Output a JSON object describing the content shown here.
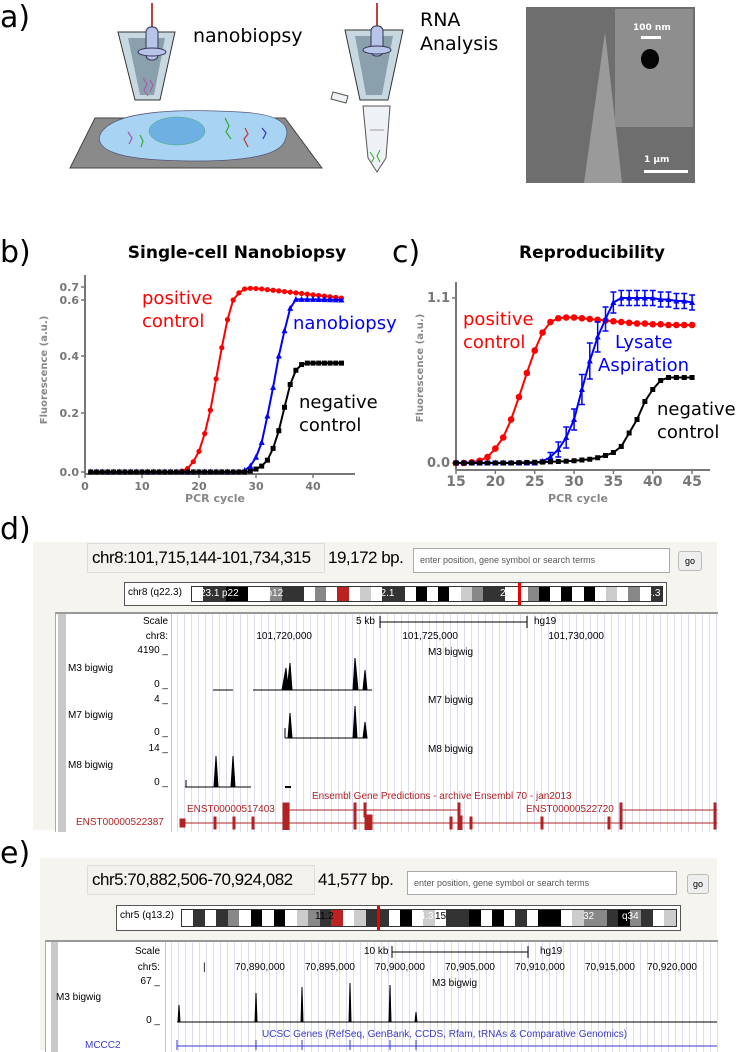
{
  "panel_labels": {
    "a": "a)",
    "b": "b)",
    "c": "c)",
    "d": "d)",
    "e": "e)"
  },
  "panel_a": {
    "step1": "nanobiopsy",
    "step2_line1": "RNA",
    "step2_line2": "Analysis",
    "sem_inset_scale": "100 nm",
    "sem_scale": "1 µm"
  },
  "chart_data": [
    {
      "type": "line",
      "title": "Single-cell Nanobiopsy",
      "xlabel": "PCR cycle",
      "ylabel": "Fluorescence  (a.u.)",
      "xlim": [
        0,
        45
      ],
      "ylim": [
        0,
        0.7
      ],
      "xticks": [
        0,
        10,
        20,
        30,
        40
      ],
      "yticks": [
        "0.0",
        "0.2",
        "0.4",
        "0.6",
        "0.7"
      ],
      "grid": false,
      "x_start": 1,
      "series": [
        {
          "name": "positive control",
          "label_lines": [
            "positive",
            "control"
          ],
          "color": "#ff0000",
          "marker": "circle",
          "values": [
            0,
            0,
            0,
            0,
            0,
            0,
            0,
            0,
            0,
            0,
            0,
            0,
            0,
            0,
            0,
            0,
            0.003,
            0.012,
            0.035,
            0.07,
            0.13,
            0.21,
            0.32,
            0.43,
            0.53,
            0.6,
            0.655,
            0.685,
            0.69,
            0.688,
            0.685,
            0.68,
            0.675,
            0.67,
            0.665,
            0.66,
            0.655,
            0.65,
            0.645,
            0.64,
            0.635,
            0.63,
            0.625,
            0.62,
            0.615
          ]
        },
        {
          "name": "nanobiopsy",
          "label_lines": [
            "nanobiopsy"
          ],
          "color": "#0000ff",
          "marker": "triangle",
          "values": [
            0,
            0,
            0,
            0,
            0,
            0,
            0,
            0,
            0,
            0,
            0,
            0,
            0,
            0,
            0,
            0,
            0,
            0,
            0,
            0,
            0,
            0,
            0,
            0,
            0,
            0,
            0,
            0.005,
            0.02,
            0.05,
            0.1,
            0.19,
            0.29,
            0.4,
            0.49,
            0.57,
            0.605,
            0.605,
            0.605,
            0.605,
            0.604,
            0.603,
            0.602,
            0.601,
            0.6
          ]
        },
        {
          "name": "negative control",
          "label_lines": [
            "negative",
            "control"
          ],
          "color": "#000000",
          "marker": "square",
          "values": [
            0,
            0,
            0,
            0,
            0,
            0,
            0,
            0,
            0,
            0,
            0,
            0,
            0,
            0,
            0,
            0,
            0,
            0,
            0,
            0,
            0,
            0,
            0,
            0,
            0,
            0,
            0,
            0,
            0.003,
            0.01,
            0.02,
            0.04,
            0.08,
            0.14,
            0.22,
            0.3,
            0.35,
            0.37,
            0.375,
            0.375,
            0.375,
            0.375,
            0.375,
            0.375,
            0.375
          ]
        }
      ]
    },
    {
      "type": "line",
      "title": "Reproducibility",
      "xlabel": "PCR cycle",
      "ylabel": "Fluorescence (a.u.)",
      "xlim": [
        15,
        45
      ],
      "ylim": [
        0,
        1.1
      ],
      "xticks": [
        15,
        20,
        25,
        30,
        35,
        40,
        45
      ],
      "yticks": [
        "0.0",
        "1.1"
      ],
      "grid": false,
      "x_start": 15,
      "series": [
        {
          "name": "positive control",
          "label_lines": [
            "positive",
            "control"
          ],
          "color": "#ff0000",
          "marker": "circle",
          "values": [
            0,
            0,
            0.005,
            0.015,
            0.04,
            0.096,
            0.17,
            0.29,
            0.44,
            0.6,
            0.75,
            0.87,
            0.94,
            0.965,
            0.97,
            0.97,
            0.965,
            0.96,
            0.955,
            0.95,
            0.945,
            0.94,
            0.935,
            0.93,
            0.93,
            0.925,
            0.925,
            0.92,
            0.92,
            0.92,
            0.92
          ]
        },
        {
          "name": "Lysate Aspiration",
          "label_lines": [
            "Lysate",
            "Aspiration"
          ],
          "color": "#0000ff",
          "marker": "triangle",
          "values": [
            0,
            0,
            0,
            0,
            0,
            0,
            0,
            0,
            0,
            0,
            0,
            0.01,
            0.04,
            0.09,
            0.17,
            0.29,
            0.49,
            0.68,
            0.84,
            0.96,
            1.07,
            1.1,
            1.1,
            1.1,
            1.1,
            1.1,
            1.09,
            1.09,
            1.08,
            1.08,
            1.07
          ],
          "errors": [
            0.01,
            0.01,
            0.01,
            0.01,
            0.01,
            0.01,
            0.01,
            0.01,
            0.01,
            0.01,
            0.01,
            0.01,
            0.03,
            0.05,
            0.07,
            0.07,
            0.1,
            0.12,
            0.1,
            0.08,
            0.07,
            0.05,
            0.05,
            0.05,
            0.05,
            0.05,
            0.05,
            0.05,
            0.05,
            0.05,
            0.05
          ]
        },
        {
          "name": "negative control",
          "label_lines": [
            "negative",
            "control"
          ],
          "color": "#000000",
          "marker": "square",
          "values": [
            0,
            0,
            0,
            0,
            0,
            0,
            0,
            0,
            0.002,
            0.004,
            0.005,
            0.006,
            0.008,
            0.01,
            0.012,
            0.015,
            0.02,
            0.025,
            0.035,
            0.05,
            0.07,
            0.11,
            0.2,
            0.29,
            0.41,
            0.49,
            0.55,
            0.57,
            0.57,
            0.57,
            0.57
          ]
        }
      ]
    }
  ],
  "browser_d": {
    "position": "chr8:101,715,144-101,734,315",
    "size": "19,172 bp.",
    "search_placeholder": "enter position, gene symbol or search terms",
    "go": "go",
    "chrom_label": "chr8 (q22.3)",
    "band_labels": [
      "23.1",
      "p22",
      "8p12",
      "12.1",
      "21.3",
      "24.3"
    ],
    "scale_label": "Scale",
    "scale_bar": "5 kb",
    "assembly": "hg19",
    "chrom_row": "chr8:",
    "coords": [
      "101,720,000",
      "101,725,000",
      "101,730,000"
    ],
    "tracks": [
      {
        "name": "M3 bigwig",
        "max": "4190 _",
        "min": "0 _"
      },
      {
        "name": "M7 bigwig",
        "max": "4 _",
        "min": "0 _"
      },
      {
        "name": "M8 bigwig",
        "max": "14 _",
        "min": "0 _"
      }
    ],
    "gene_track_title": "Ensembl Gene Predictions - archive Ensembl 70 - jan2013",
    "genes": [
      "ENST00000517403",
      "ENST00000522720",
      "ENST00000522387"
    ],
    "gene_color": "#b22222"
  },
  "browser_e": {
    "position": "chr5:70,882,506-70,924,082",
    "size": "41,577 bp.",
    "search_placeholder": "enter position, gene symbol or search terms",
    "go": "go",
    "chrom_label": "chr5 (q13.2)",
    "band_labels": [
      "11.2",
      "14.3",
      "15",
      "32",
      "q34"
    ],
    "scale_label": "Scale",
    "scale_bar": "10 kb",
    "assembly": "hg19",
    "chrom_row": "chr5:",
    "coords": [
      "70,890,000",
      "70,895,000",
      "70,900,000",
      "70,905,000",
      "70,910,000",
      "70,915,000",
      "70,920,000"
    ],
    "tracks": [
      {
        "name": "M3 bigwig",
        "max": "67 _",
        "min": "0 _"
      }
    ],
    "gene_track_title": "UCSC Genes (RefSeq, GenBank, CCDS, Rfam, tRNAs & Comparative Genomics)",
    "genes": [
      "MCCC2"
    ],
    "gene_color": "#3a3acc"
  }
}
